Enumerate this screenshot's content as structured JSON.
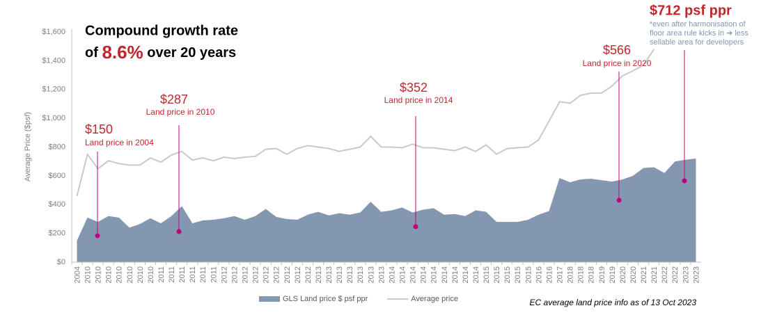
{
  "chart_data": {
    "type": "area_line",
    "title_line1": "Compound growth rate",
    "title_prefix": "of",
    "title_highlight": "8.6%",
    "title_suffix": "over 20 years",
    "ylabel": "Average Price ($psf)",
    "footnote": "EC average land price info as of 13 Oct 2023",
    "categories": [
      "2004",
      "2010",
      "2010",
      "2010",
      "2010",
      "2010",
      "2010",
      "2010",
      "2011",
      "2011",
      "2011",
      "2011",
      "2011",
      "2011",
      "2012",
      "2012",
      "2012",
      "2012",
      "2012",
      "2012",
      "2012",
      "2012",
      "2012",
      "2013",
      "2013",
      "2013",
      "2013",
      "2013",
      "2013",
      "2013",
      "2014",
      "2014",
      "2014",
      "2014",
      "2014",
      "2014",
      "2014",
      "2014",
      "2014",
      "2015",
      "2015",
      "2015",
      "2015",
      "2015",
      "2016",
      "2016",
      "2017",
      "2018",
      "2018",
      "2018",
      "2019",
      "2019",
      "2020",
      "2020",
      "2021",
      "2021",
      "2022",
      "2022",
      "2023",
      "2023"
    ],
    "series": [
      {
        "name": "GLS Land price $ psf ppr",
        "color": "#8497b0",
        "kind": "area",
        "values": [
          150,
          310,
          280,
          320,
          310,
          240,
          265,
          305,
          270,
          320,
          390,
          270,
          290,
          295,
          305,
          320,
          295,
          320,
          370,
          315,
          300,
          295,
          330,
          350,
          325,
          340,
          330,
          345,
          420,
          350,
          360,
          380,
          345,
          365,
          375,
          330,
          335,
          320,
          360,
          350,
          280,
          280,
          280,
          295,
          330,
          355,
          585,
          555,
          575,
          580,
          570,
          560,
          575,
          600,
          655,
          660,
          620,
          700,
          712,
          720
        ]
      },
      {
        "name": "Average price",
        "color": "#c9c9c9",
        "kind": "line",
        "values": [
          460,
          750,
          650,
          705,
          685,
          675,
          675,
          725,
          695,
          745,
          770,
          710,
          725,
          705,
          730,
          720,
          730,
          735,
          785,
          790,
          750,
          790,
          810,
          800,
          790,
          770,
          785,
          800,
          875,
          800,
          800,
          795,
          820,
          795,
          795,
          785,
          775,
          800,
          770,
          815,
          750,
          790,
          795,
          800,
          850,
          980,
          1115,
          1105,
          1160,
          1175,
          1175,
          1225,
          1295,
          1330,
          1370,
          1480,
          null,
          null,
          null,
          null
        ]
      }
    ],
    "ylim": [
      0,
      1600
    ],
    "yticks": [
      {
        "value": 0,
        "label": "$0"
      },
      {
        "value": 200,
        "label": "$200"
      },
      {
        "value": 400,
        "label": "$400"
      },
      {
        "value": 600,
        "label": "$600"
      },
      {
        "value": 800,
        "label": "$800"
      },
      {
        "value": 1000,
        "label": "$1,000"
      },
      {
        "value": 1200,
        "label": "$1,200"
      },
      {
        "value": 1400,
        "label": "$1,400"
      },
      {
        "value": 1600,
        "label": "$1,600"
      }
    ],
    "grid": false,
    "legend": "bottom",
    "annotations": [
      {
        "label": "$150",
        "text": "Land price in 2004"
      },
      {
        "label": "$287",
        "text": "Land price in 2010"
      },
      {
        "label": "$352",
        "text": "Land price in 2014"
      },
      {
        "label": "$566",
        "text": "Land price in 2020"
      },
      {
        "label": "$712 psf ppr",
        "note": [
          "*even after harmonisation of",
          "floor area rule kicks in ➔ less",
          "sellable area for developers"
        ]
      }
    ]
  }
}
